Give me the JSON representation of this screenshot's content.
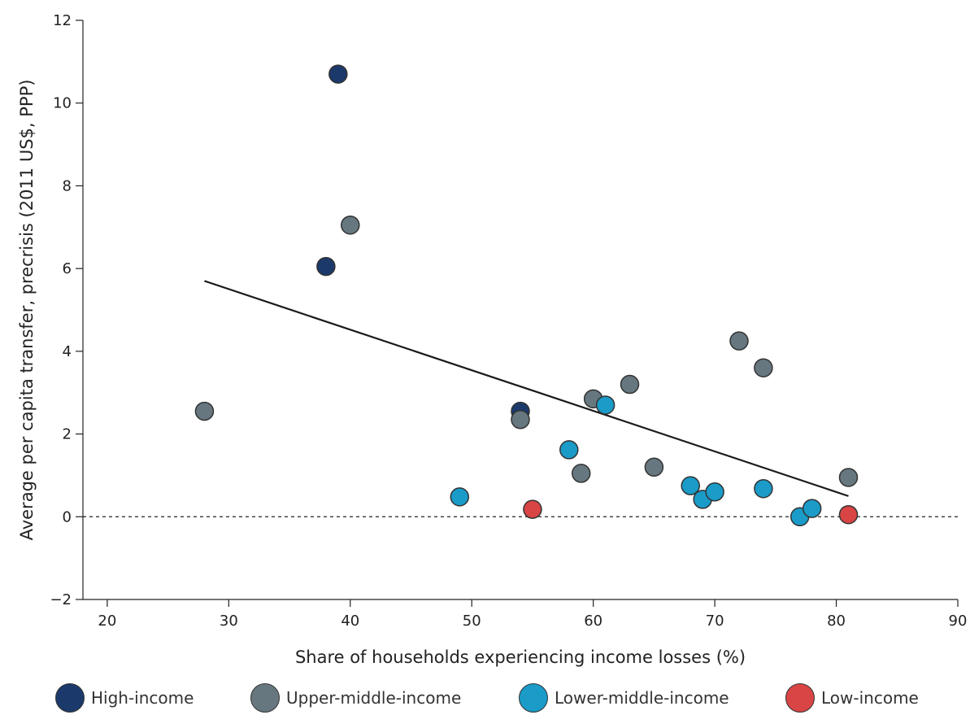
{
  "chart_data": {
    "type": "scatter",
    "xlabel": "Share of households experiencing income losses (%)",
    "ylabel": "Average per capita transfer, precrisis (2011 US$, PPP)",
    "xlim": [
      18,
      90
    ],
    "ylim": [
      -2,
      12
    ],
    "xticks": [
      "20",
      "30",
      "40",
      "50",
      "60",
      "70",
      "80",
      "90"
    ],
    "yticks": [
      "−2",
      "0",
      "2",
      "4",
      "6",
      "8",
      "10",
      "12"
    ],
    "xtick_values": [
      20,
      30,
      40,
      50,
      60,
      70,
      80,
      90
    ],
    "ytick_values": [
      -2,
      0,
      2,
      4,
      6,
      8,
      10,
      12
    ],
    "grid": false,
    "legend_placement": "bottom",
    "reference_line": {
      "y": 0,
      "style": "dashed"
    },
    "trendline": {
      "x": [
        28,
        81
      ],
      "y": [
        5.7,
        0.5
      ]
    },
    "series": [
      {
        "name": "High-income",
        "color": "#1b3a6b",
        "points": [
          [
            39,
            10.7
          ],
          [
            38,
            6.05
          ],
          [
            54,
            2.55
          ]
        ]
      },
      {
        "name": "Upper-middle-income",
        "color": "#66777f",
        "points": [
          [
            40,
            7.05
          ],
          [
            28,
            2.55
          ],
          [
            54,
            2.35
          ],
          [
            60,
            2.85
          ],
          [
            63,
            3.2
          ],
          [
            59,
            1.05
          ],
          [
            65,
            1.2
          ],
          [
            72,
            4.25
          ],
          [
            74,
            3.6
          ],
          [
            81,
            0.95
          ]
        ]
      },
      {
        "name": "Lower-middle-income",
        "color": "#1a9bc8",
        "points": [
          [
            49,
            0.48
          ],
          [
            58,
            1.62
          ],
          [
            61,
            2.7
          ],
          [
            68,
            0.75
          ],
          [
            69,
            0.42
          ],
          [
            70,
            0.6
          ],
          [
            74,
            0.68
          ],
          [
            77,
            0.0
          ],
          [
            78,
            0.2
          ]
        ]
      },
      {
        "name": "Low-income",
        "color": "#d94545",
        "points": [
          [
            55,
            0.18
          ],
          [
            81,
            0.05
          ]
        ]
      }
    ]
  }
}
